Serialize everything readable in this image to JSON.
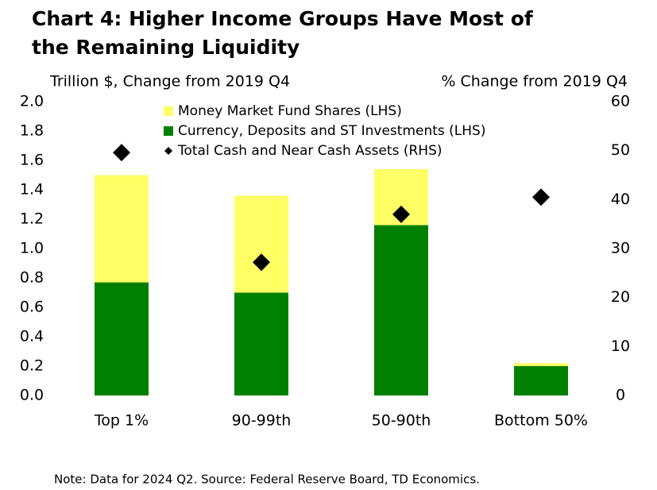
{
  "chart_data": {
    "type": "bar",
    "stacked": true,
    "title": [
      "Chart 4: Higher Income Groups Have Most of",
      "the Remaining Liquidity"
    ],
    "y_label": "Trillion $, Change from 2019 Q4",
    "y2_label": "% Change from 2019 Q4",
    "note": "Note: Data for 2024 Q2. Source: Federal Reserve Board, TD Economics.",
    "categories": [
      "Top 1%",
      "90-99th",
      "50-90th",
      "Bottom 50%"
    ],
    "series": [
      {
        "name": "Currency, Deposits and ST Investments (LHS)",
        "type": "bar",
        "color": "#008000",
        "values": [
          0.77,
          0.7,
          1.16,
          0.2
        ]
      },
      {
        "name": "Money Market Fund Shares (LHS)",
        "type": "bar",
        "color": "#ffff66",
        "values": [
          0.73,
          0.66,
          0.38,
          0.02
        ]
      },
      {
        "name": "Total Cash and Near Cash Assets (RHS)",
        "type": "scatter",
        "marker": "diamond",
        "color": "#000000",
        "axis": "y2",
        "values": [
          49.6,
          27.2,
          37.0,
          40.5
        ]
      }
    ],
    "legend_order": [
      1,
      0,
      2
    ],
    "ylim": [
      0,
      2
    ],
    "yticks": [
      {
        "value": 0,
        "label": "0.0"
      },
      {
        "value": 0.2,
        "label": "0.2"
      },
      {
        "value": 0.4,
        "label": "0.4"
      },
      {
        "value": 0.6,
        "label": "0.6"
      },
      {
        "value": 0.8,
        "label": "0.8"
      },
      {
        "value": 1,
        "label": "1.0"
      },
      {
        "value": 1.2,
        "label": "1.2"
      },
      {
        "value": 1.4,
        "label": "1.4"
      },
      {
        "value": 1.6,
        "label": "1.6"
      },
      {
        "value": 1.8,
        "label": "1.8"
      },
      {
        "value": 2,
        "label": "2.0"
      }
    ],
    "y2lim": [
      0,
      60
    ],
    "y2ticks": [
      0,
      10,
      20,
      30,
      40,
      50,
      60
    ],
    "grid": false
  }
}
